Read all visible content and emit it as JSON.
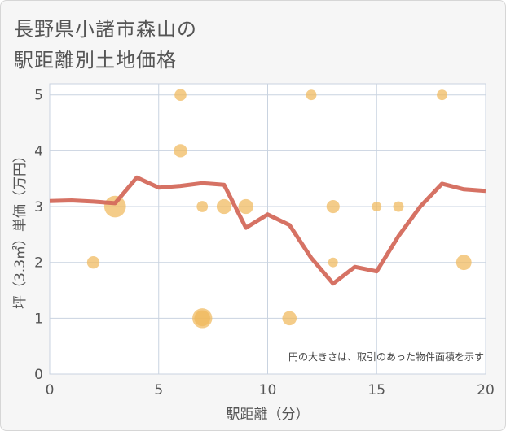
{
  "title_lines": [
    "長野県小諸市森山の",
    "駅距離別土地価格"
  ],
  "chart_data": {
    "type": "scatter",
    "xlabel": "駅距離（分）",
    "ylabel": "坪（3.3㎡）単価（万円）",
    "xlim": [
      0,
      20
    ],
    "ylim": [
      0,
      5.2
    ],
    "xticks": [
      0,
      5,
      10,
      15,
      20
    ],
    "yticks": [
      0,
      1,
      2,
      3,
      4,
      5
    ],
    "grid": true,
    "note": "円の大きさは、取引のあった物件面積を示す",
    "colors": {
      "bubble": "#f0b95c",
      "line": "#d46a5c",
      "grid": "#c9d3e0",
      "plot_bg": "#ffffff",
      "axis_text": "#555555"
    },
    "bubbles": [
      {
        "x": 2,
        "y": 2,
        "size": 1.0
      },
      {
        "x": 3,
        "y": 3,
        "size": 3.0
      },
      {
        "x": 6,
        "y": 5,
        "size": 0.9
      },
      {
        "x": 6,
        "y": 4,
        "size": 1.1
      },
      {
        "x": 7,
        "y": 3,
        "size": 0.8
      },
      {
        "x": 7,
        "y": 1,
        "size": 2.5
      },
      {
        "x": 7,
        "y": 1,
        "size": 1.6
      },
      {
        "x": 8,
        "y": 3,
        "size": 1.4
      },
      {
        "x": 9,
        "y": 3,
        "size": 1.4
      },
      {
        "x": 11,
        "y": 1,
        "size": 1.3
      },
      {
        "x": 12,
        "y": 5,
        "size": 0.7
      },
      {
        "x": 13,
        "y": 3,
        "size": 1.1
      },
      {
        "x": 13,
        "y": 2,
        "size": 0.6
      },
      {
        "x": 15,
        "y": 3,
        "size": 0.6
      },
      {
        "x": 16,
        "y": 3,
        "size": 0.7
      },
      {
        "x": 18,
        "y": 5,
        "size": 0.7
      },
      {
        "x": 19,
        "y": 2,
        "size": 1.5
      }
    ],
    "line": {
      "x": [
        0,
        1,
        2,
        3,
        4,
        5,
        6,
        7,
        8,
        9,
        10,
        11,
        12,
        13,
        14,
        15,
        16,
        17,
        18,
        19,
        20
      ],
      "y": [
        3.1,
        3.11,
        3.09,
        3.06,
        3.52,
        3.34,
        3.37,
        3.42,
        3.39,
        2.62,
        2.86,
        2.67,
        2.08,
        1.62,
        1.92,
        1.84,
        2.47,
        3.0,
        3.41,
        3.31,
        3.28
      ]
    }
  }
}
